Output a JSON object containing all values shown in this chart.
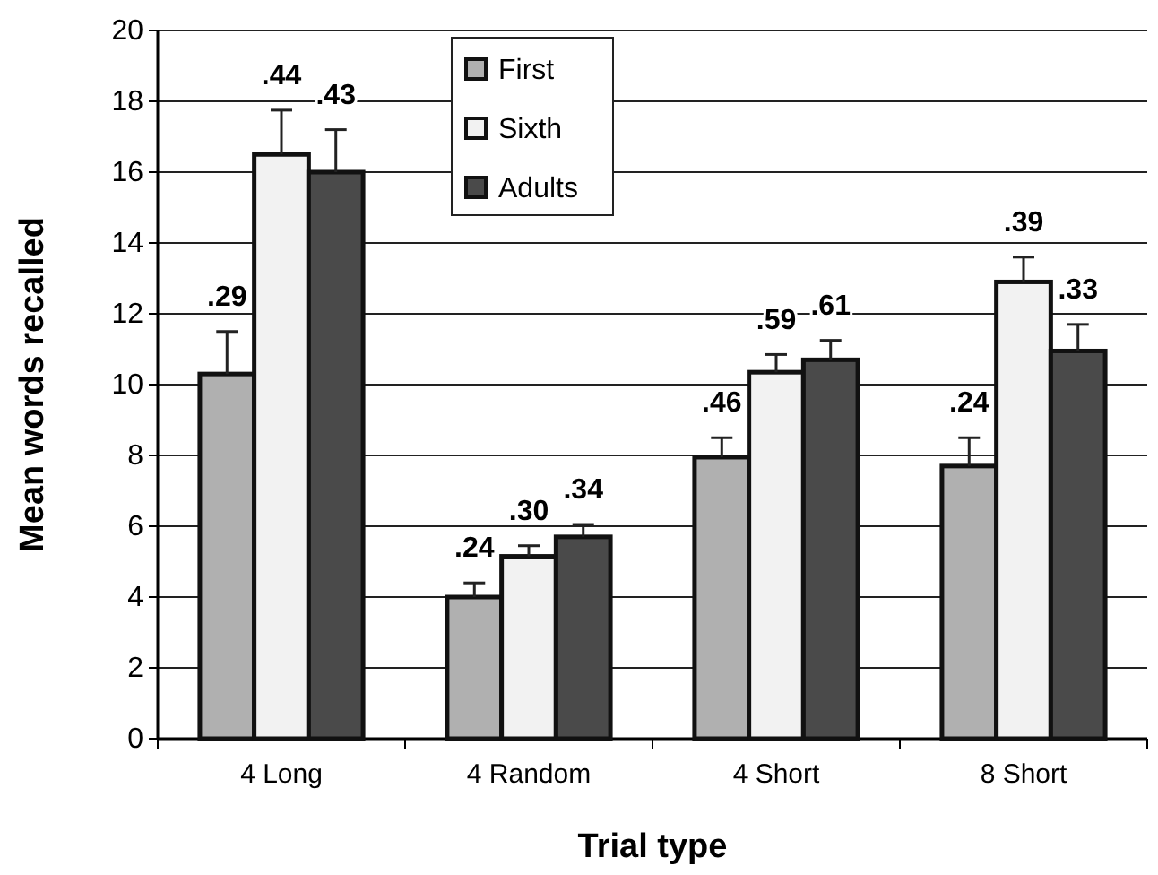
{
  "chart_data": {
    "type": "bar",
    "xlabel": "Trial type",
    "ylabel": "Mean words recalled",
    "categories": [
      "4 Long",
      "4 Random",
      "4 Short",
      "8 Short"
    ],
    "series": [
      {
        "name": "First",
        "color": "#b0b0b0",
        "values": [
          10.3,
          4.0,
          7.95,
          7.7
        ],
        "errors": [
          [
            10.3,
            11.5
          ],
          [
            4.0,
            4.4
          ],
          [
            7.95,
            8.5
          ],
          [
            7.7,
            8.5
          ]
        ]
      },
      {
        "name": "Sixth",
        "color": "#f2f2f2",
        "values": [
          16.5,
          5.15,
          10.35,
          12.9
        ],
        "errors": [
          [
            16.5,
            17.75
          ],
          [
            5.15,
            5.45
          ],
          [
            10.35,
            10.85
          ],
          [
            12.9,
            13.6
          ]
        ]
      },
      {
        "name": "Adults",
        "color": "#4a4a4a",
        "values": [
          16.0,
          5.7,
          10.7,
          10.95
        ],
        "errors": [
          [
            16.0,
            17.2
          ],
          [
            5.7,
            6.05
          ],
          [
            10.7,
            11.25
          ],
          [
            10.95,
            11.7
          ]
        ]
      }
    ],
    "annotations": [
      ".29",
      ".44",
      ".43",
      ".24",
      ".30",
      ".34",
      ".46",
      ".59",
      ".61",
      ".24",
      ".39",
      ".33"
    ],
    "ylim": [
      0,
      20
    ],
    "yticks": [
      0,
      2,
      4,
      6,
      8,
      10,
      12,
      14,
      16,
      18,
      20
    ],
    "grid": "y",
    "legend": "top"
  }
}
